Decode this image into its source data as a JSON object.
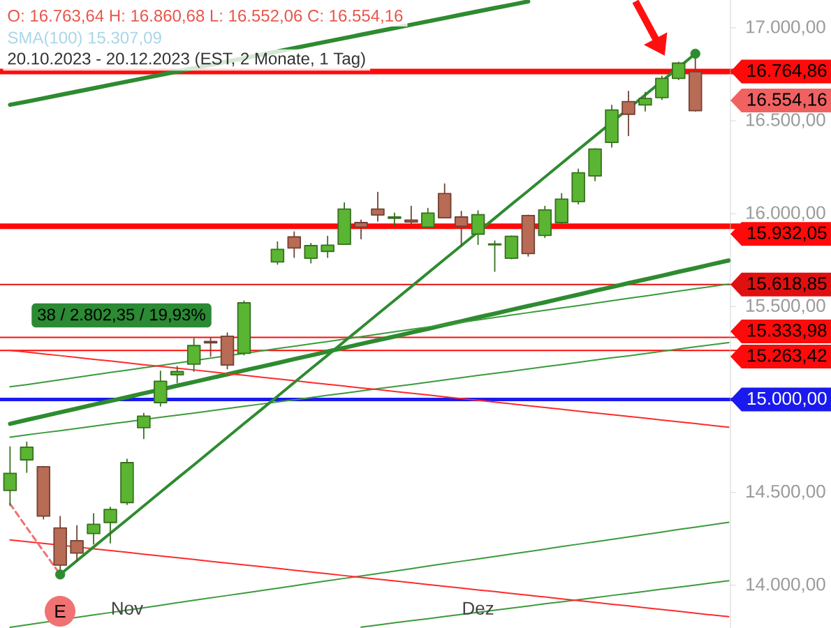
{
  "chart_data": {
    "type": "candlestick",
    "title": "O: 16.763,64  H: 16.860,68  L: 16.552,06  C: 16.554,16",
    "subtitle": "20.10.2023 - 20.12.2023  (EST, 2 Monate, 1 Tag)",
    "categories": [
      null,
      null,
      null,
      null,
      null,
      null,
      null,
      "Nov",
      null,
      null,
      null,
      null,
      null,
      null,
      null,
      null,
      null,
      null,
      null,
      null,
      null,
      null,
      null,
      null,
      null,
      null,
      null,
      null,
      "Dez",
      null,
      null,
      null,
      null,
      null,
      null,
      null,
      null,
      null,
      null,
      null,
      null,
      null,
      null,
      null
    ],
    "ohlc": [
      [
        14510,
        14745,
        14430,
        14602
      ],
      [
        14675,
        14770,
        14608,
        14743
      ],
      [
        14638,
        14640,
        14357,
        14372
      ],
      [
        14308,
        14370,
        14058,
        14108
      ],
      [
        14240,
        14320,
        14132,
        14173
      ],
      [
        14278,
        14385,
        14222,
        14328
      ],
      [
        14338,
        14420,
        14228,
        14408
      ],
      [
        14445,
        14678,
        14435,
        14660
      ],
      [
        14848,
        14925,
        14790,
        14910
      ],
      [
        14983,
        15152,
        14965,
        15098
      ],
      [
        15133,
        15178,
        15090,
        15150
      ],
      [
        15190,
        15328,
        15152,
        15290
      ],
      [
        15312,
        15332,
        15233,
        15305
      ],
      [
        15340,
        15358,
        15165,
        15185
      ],
      [
        15248,
        15530,
        15240,
        15520
      ],
      null,
      [
        15740,
        15848,
        15728,
        15808
      ],
      [
        15875,
        15902,
        15765,
        15815
      ],
      [
        15760,
        15840,
        15735,
        15828
      ],
      [
        15797,
        15878,
        15765,
        15830
      ],
      [
        15835,
        16058,
        15835,
        16025
      ],
      [
        15952,
        15965,
        15865,
        15928
      ],
      [
        16025,
        16115,
        15960,
        15993
      ],
      [
        15975,
        16003,
        15940,
        15982
      ],
      [
        15965,
        16040,
        15940,
        15955
      ],
      [
        15928,
        16028,
        15928,
        16003
      ],
      [
        16108,
        16160,
        15978,
        15978
      ],
      [
        15982,
        16012,
        15828,
        15933
      ],
      [
        15890,
        16015,
        15835,
        15995
      ],
      [
        15832,
        15853,
        15690,
        15837
      ],
      [
        15760,
        15880,
        15758,
        15878
      ],
      [
        15990,
        15992,
        15772,
        15785
      ],
      [
        15883,
        16040,
        15872,
        16020
      ],
      [
        15952,
        16108,
        15940,
        16078
      ],
      [
        16065,
        16240,
        16052,
        16220
      ],
      [
        16203,
        16350,
        16178,
        16348
      ],
      [
        16383,
        16583,
        16358,
        16558
      ],
      [
        16603,
        16658,
        16420,
        16535
      ],
      [
        16585,
        16653,
        16553,
        16620
      ],
      [
        16625,
        16740,
        16615,
        16728
      ],
      [
        16728,
        16815,
        16722,
        16810
      ],
      [
        16763.64,
        16860.68,
        16552.06,
        16554.16
      ],
      null,
      null
    ],
    "colors": [
      "#5ab532",
      "#5ab532",
      "#b86b55",
      "#b86b55",
      "#b86b55",
      "#5ab532",
      "#5ab532",
      "#5ab532",
      "#5ab532",
      "#5ab532",
      "#5ab532",
      "#5ab532",
      "#b86b55",
      "#b86b55",
      "#5ab532",
      null,
      "#5ab532",
      "#b86b55",
      "#5ab532",
      "#5ab532",
      "#5ab532",
      "#b86b55",
      "#b86b55",
      "#5ab532",
      "#b86b55",
      "#5ab532",
      "#b86b55",
      "#b86b55",
      "#5ab532",
      "#5ab532",
      "#5ab532",
      "#b86b55",
      "#5ab532",
      "#5ab532",
      "#5ab532",
      "#5ab532",
      "#5ab532",
      "#b86b55",
      "#5ab532",
      "#5ab532",
      "#5ab532",
      "#b86b55",
      null,
      null
    ],
    "ylim": [
      13770,
      17150
    ],
    "yticks": [
      {
        "value": 14000,
        "label": "14.000,00"
      },
      {
        "value": 14500,
        "label": "14.500,00"
      },
      {
        "value": 15500,
        "label": "15.500,00"
      },
      {
        "value": 16000,
        "label": "16.000,00"
      },
      {
        "value": 16500,
        "label": "16.500,00"
      },
      {
        "value": 17000,
        "label": "17.000,00"
      }
    ],
    "series": [
      {
        "type": "line",
        "color": "#2e8b30",
        "values": [
          16586,
          16603,
          16621,
          16639,
          16657,
          16675,
          16693,
          16711,
          16729,
          16747,
          16765,
          16783,
          null,
          null,
          null,
          null,
          16873,
          16891,
          16909,
          16927,
          16945,
          16963,
          16981,
          16999,
          17017,
          17035,
          17053,
          17071,
          17089,
          17107,
          17124,
          17142,
          null,
          null,
          null,
          null,
          null,
          null,
          null,
          null,
          null,
          null,
          null,
          null
        ]
      },
      {
        "type": "line",
        "color": "#2e8b30",
        "values": [
          14869,
          14890,
          14910,
          14931,
          14951,
          14972,
          14992,
          15012,
          15033,
          15053,
          15074,
          15094,
          15115,
          15135,
          15156,
          15176,
          15196,
          15217,
          15237,
          15258,
          15278,
          15299,
          15319,
          15339,
          15360,
          15380,
          15401,
          15421,
          15442,
          15462,
          15483,
          15503,
          15523,
          15544,
          15564,
          15585,
          15605,
          15626,
          15646,
          15666,
          15687,
          15707,
          15728,
          15748
        ]
      },
      {
        "type": "line",
        "color": "#3c9a3c",
        "values": [
          15068,
          15080,
          15093,
          15106,
          15119,
          15132,
          15145,
          15158,
          15171,
          15183,
          15196,
          15209,
          15222,
          null,
          15248,
          15261,
          15274,
          15286,
          15299,
          15312,
          15325,
          15338,
          15351,
          15364,
          15377,
          15390,
          15402,
          15415,
          15428,
          15441,
          15454,
          15467,
          15480,
          15493,
          15505,
          15518,
          15531,
          15544,
          15557,
          15570,
          15583,
          15596,
          15608,
          15621
        ]
      },
      {
        "type": "line",
        "color": "#3c9a3c",
        "values": [
          14797,
          14809,
          14821,
          14832,
          14844,
          14856,
          14868,
          14880,
          14892,
          14904,
          14915,
          14927,
          14939,
          14951,
          14963,
          14975,
          14987,
          14998,
          15010,
          15022,
          15034,
          15046,
          15058,
          15069,
          15081,
          15093,
          15105,
          15117,
          15129,
          15141,
          15152,
          15164,
          15176,
          15188,
          15200,
          15212,
          15224,
          15235,
          15247,
          15259,
          15271,
          15283,
          15295,
          15306
        ]
      },
      {
        "type": "line",
        "color": "#3c9a3c",
        "values": [
          13774,
          13787,
          13800,
          null,
          13827,
          13840,
          13853,
          13866,
          13879,
          13892,
          13906,
          13919,
          13932,
          13945,
          13958,
          13971,
          13984,
          13997,
          14011,
          14024,
          14037,
          14050,
          14063,
          14076,
          14089,
          14103,
          14116,
          14129,
          14142,
          14155,
          14168,
          14181,
          14194,
          14208,
          14221,
          14234,
          14247,
          14260,
          14273,
          14286,
          14300,
          14313,
          14326,
          14339
        ]
      },
      {
        "type": "line",
        "color": "#3c9a3c",
        "values": [
          null,
          null,
          null,
          null,
          null,
          null,
          null,
          null,
          null,
          null,
          null,
          null,
          null,
          null,
          null,
          null,
          null,
          null,
          null,
          null,
          null,
          13775,
          13786,
          13798,
          13809,
          13820,
          13832,
          13843,
          13854,
          13866,
          13877,
          13888,
          13900,
          13911,
          13922,
          13933,
          13945,
          13956,
          13967,
          13979,
          13990,
          14001,
          14013,
          14024
        ]
      },
      {
        "type": "line",
        "color": "#ff2a2a",
        "values": [
          15264,
          15255,
          15245,
          15236,
          15226,
          15216,
          15207,
          15197,
          15187,
          15178,
          15168,
          15159,
          15149,
          15139,
          15130,
          15120,
          15111,
          15101,
          15091,
          15082,
          15072,
          15062,
          15053,
          15043,
          15034,
          15024,
          15014,
          15005,
          14995,
          14986,
          14976,
          14966,
          14957,
          14947,
          14937,
          14928,
          14918,
          14909,
          14899,
          14889,
          14880,
          14870,
          14860,
          14851
        ]
      },
      {
        "type": "line",
        "color": "#ff2a2a",
        "values": [
          14244,
          14235,
          14225,
          14216,
          14206,
          14196,
          14187,
          14177,
          14167,
          14158,
          14148,
          14139,
          14129,
          14119,
          14110,
          14100,
          14091,
          14081,
          14071,
          14062,
          14052,
          14042,
          14033,
          14023,
          14014,
          14004,
          13994,
          13985,
          13975,
          13966,
          13956,
          13946,
          13937,
          13927,
          13917,
          13908,
          13898,
          13889,
          13879,
          13869,
          13860,
          13850,
          13840,
          13831
        ]
      },
      {
        "type": "line",
        "color": "#2e8b30",
        "values": [
          null,
          null,
          null,
          14058,
          14132,
          14206,
          14280,
          14353,
          14427,
          14501,
          14575,
          14648,
          14722,
          14796,
          14870,
          14943,
          15017,
          15091,
          15165,
          15238,
          15312,
          15386,
          15460,
          15533,
          15607,
          15681,
          15755,
          15828,
          15902,
          15976,
          16050,
          16123,
          16197,
          16271,
          16345,
          16418,
          16492,
          null,
          16639,
          16713,
          16787,
          16861,
          null,
          null
        ]
      },
      {
        "type": "scatter",
        "color": "#2e8b30",
        "marker": "circle",
        "values": [
          null,
          null,
          null,
          14058,
          null,
          null,
          null,
          null,
          null,
          null,
          null,
          null,
          null,
          null,
          null,
          null,
          null,
          null,
          null,
          null,
          null,
          null,
          null,
          null,
          null,
          null,
          null,
          null,
          null,
          null,
          null,
          null,
          null,
          null,
          null,
          null,
          null,
          null,
          null,
          null,
          null,
          16861,
          null,
          null
        ]
      },
      {
        "type": "line",
        "color": "#f07070",
        "line_style": "dashed",
        "values": [
          14438,
          14310,
          14183,
          14058,
          null,
          null,
          null,
          null,
          null,
          null,
          null,
          null,
          null,
          null,
          null,
          null,
          null,
          null,
          null,
          null,
          null,
          null,
          null,
          null,
          null,
          null,
          null,
          null,
          null,
          null,
          null,
          null,
          null,
          null,
          null,
          null,
          null,
          null,
          null,
          null,
          null,
          null,
          null,
          null
        ]
      }
    ],
    "ref_lines": [
      {
        "axis": "y",
        "value": 16764.86,
        "label": "16.764,86",
        "color": "#ff0a0a"
      },
      {
        "axis": "y",
        "value": 15932.05,
        "label": "15.932,05",
        "color": "#ff0a0a"
      },
      {
        "axis": "y",
        "value": 15618.85,
        "label": "15.618,85",
        "color": "#e01010"
      },
      {
        "axis": "y",
        "value": 15333.98,
        "label": "15.333,98",
        "color": "#ff0a0a"
      },
      {
        "axis": "y",
        "value": 15263.42,
        "label": "15.263,42",
        "color": "#ff0a0a"
      },
      {
        "axis": "y",
        "value": 15000.0,
        "label": "15.000,00",
        "color": "#1a1aee"
      }
    ],
    "annotations": [
      "SMA(100)  15.307,09",
      "38 / 2.802,35 / 19,93%",
      "16.554,16",
      "E"
    ]
  }
}
